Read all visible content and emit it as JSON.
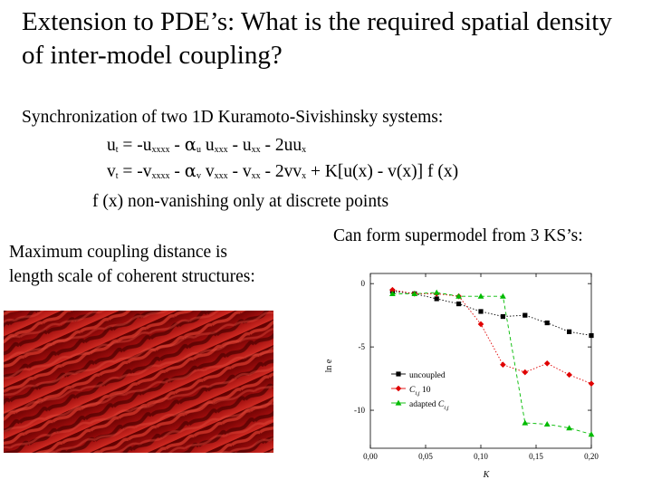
{
  "slide": {
    "title": "Extension to PDE’s:  What is the required spatial density of inter-model coupling?",
    "intro": "Synchronization of two 1D  Kuramoto-Sivishinsky systems:",
    "eq1": {
      "u": "u",
      "t_sub": "t",
      "eq": " = -u",
      "xxxx": "xxxx",
      "mid1": "  - ",
      "alpha": "α",
      "u_sub": "u",
      "u2": " u",
      "xxx": "xxx",
      "mid2": " - u",
      "xx": "xx",
      "tail": " - 2uu",
      "x": "x"
    },
    "eq2": {
      "v": "v",
      "t_sub": "t",
      "eq": " = -v",
      "xxxx": "xxxx",
      "mid1": "  - ",
      "alpha": "α",
      "v_sub": "v",
      "v2": " v",
      "xxx": "xxx",
      "mid2": " - v",
      "xx": "xx",
      "tail": " - 2vv",
      "x": "x",
      "coupling": " + K[u(x) - v(x)] f (x)"
    },
    "note": "f (x) non-vanishing only at discrete points",
    "left_caption_1": "Maximum coupling distance is",
    "left_caption_2": "length scale of coherent structures:",
    "right_caption": "Can form supermodel from 3 KS’s:"
  },
  "colors": {
    "texture_dark": "#5c0000",
    "texture_mid": "#9a0c0c",
    "texture_light": "#cf2a22",
    "series_uncoupled": "#000000",
    "series_c10": "#e00000",
    "series_adapted": "#00bb00"
  },
  "chart_data": {
    "type": "line",
    "xlabel": "K",
    "ylabel": "ln e",
    "xlim": [
      0.0,
      0.2
    ],
    "ylim": [
      -13,
      0.8
    ],
    "xticks": [
      "0,00",
      "0,05",
      "0,10",
      "0,15",
      "0,20"
    ],
    "yticks": [
      "0",
      "-5",
      "-10"
    ],
    "legend_position": "lower-left",
    "series": [
      {
        "name": "uncoupled",
        "marker": "square",
        "x": [
          0.02,
          0.04,
          0.06,
          0.08,
          0.1,
          0.12,
          0.14,
          0.16,
          0.18,
          0.2
        ],
        "values": [
          -0.6,
          -0.8,
          -1.2,
          -1.6,
          -2.2,
          -2.6,
          -2.5,
          -3.1,
          -3.8,
          -4.1
        ]
      },
      {
        "name_parts": [
          "C",
          "i,j",
          " 10"
        ],
        "marker": "diamond",
        "x": [
          0.02,
          0.04,
          0.06,
          0.08,
          0.1,
          0.12,
          0.14,
          0.16,
          0.18,
          0.2
        ],
        "values": [
          -0.5,
          -0.8,
          -0.8,
          -1.0,
          -3.2,
          -6.4,
          -7.0,
          -6.3,
          -7.2,
          -7.9
        ]
      },
      {
        "name_parts": [
          "adapted ",
          "C",
          "i,j"
        ],
        "marker": "triangle",
        "x": [
          0.02,
          0.04,
          0.06,
          0.08,
          0.1,
          0.12,
          0.14,
          0.16,
          0.18,
          0.2
        ],
        "values": [
          -0.8,
          -0.8,
          -0.7,
          -1.0,
          -1.0,
          -1.0,
          -11.0,
          -11.1,
          -11.4,
          -11.9
        ]
      }
    ]
  }
}
